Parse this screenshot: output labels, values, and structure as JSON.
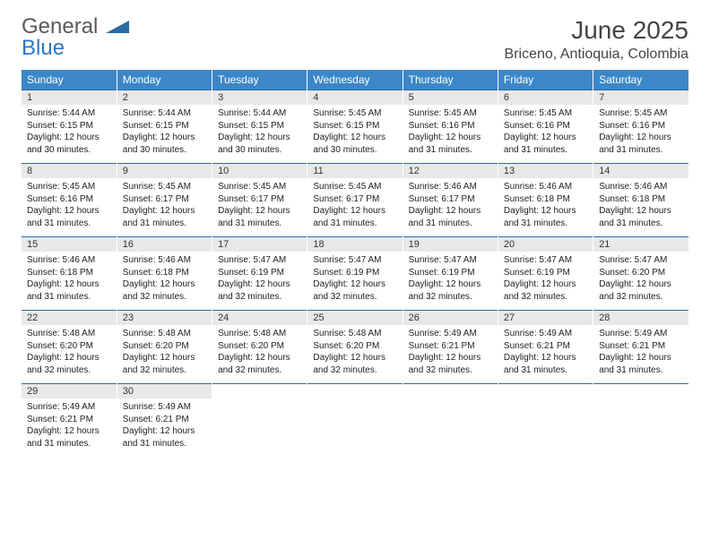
{
  "logo": {
    "top": "General",
    "bottom": "Blue"
  },
  "title": "June 2025",
  "location": "Briceno, Antioquia, Colombia",
  "colors": {
    "header_bg": "#3b87c8",
    "header_text": "#ffffff",
    "daynum_bg": "#e8e8e8",
    "border_accent": "#2a6aa3",
    "logo_gray": "#5a5a5a",
    "logo_blue": "#2a77c8",
    "title_color": "#444444",
    "body_text": "#222222",
    "page_bg": "#ffffff"
  },
  "fonts": {
    "title_size_pt": 21,
    "location_size_pt": 12,
    "header_size_pt": 9,
    "daynum_size_pt": 8,
    "body_size_pt": 7.5
  },
  "day_headers": [
    "Sunday",
    "Monday",
    "Tuesday",
    "Wednesday",
    "Thursday",
    "Friday",
    "Saturday"
  ],
  "weeks": [
    [
      {
        "n": "1",
        "sr": "Sunrise: 5:44 AM",
        "ss": "Sunset: 6:15 PM",
        "d1": "Daylight: 12 hours",
        "d2": "and 30 minutes."
      },
      {
        "n": "2",
        "sr": "Sunrise: 5:44 AM",
        "ss": "Sunset: 6:15 PM",
        "d1": "Daylight: 12 hours",
        "d2": "and 30 minutes."
      },
      {
        "n": "3",
        "sr": "Sunrise: 5:44 AM",
        "ss": "Sunset: 6:15 PM",
        "d1": "Daylight: 12 hours",
        "d2": "and 30 minutes."
      },
      {
        "n": "4",
        "sr": "Sunrise: 5:45 AM",
        "ss": "Sunset: 6:15 PM",
        "d1": "Daylight: 12 hours",
        "d2": "and 30 minutes."
      },
      {
        "n": "5",
        "sr": "Sunrise: 5:45 AM",
        "ss": "Sunset: 6:16 PM",
        "d1": "Daylight: 12 hours",
        "d2": "and 31 minutes."
      },
      {
        "n": "6",
        "sr": "Sunrise: 5:45 AM",
        "ss": "Sunset: 6:16 PM",
        "d1": "Daylight: 12 hours",
        "d2": "and 31 minutes."
      },
      {
        "n": "7",
        "sr": "Sunrise: 5:45 AM",
        "ss": "Sunset: 6:16 PM",
        "d1": "Daylight: 12 hours",
        "d2": "and 31 minutes."
      }
    ],
    [
      {
        "n": "8",
        "sr": "Sunrise: 5:45 AM",
        "ss": "Sunset: 6:16 PM",
        "d1": "Daylight: 12 hours",
        "d2": "and 31 minutes."
      },
      {
        "n": "9",
        "sr": "Sunrise: 5:45 AM",
        "ss": "Sunset: 6:17 PM",
        "d1": "Daylight: 12 hours",
        "d2": "and 31 minutes."
      },
      {
        "n": "10",
        "sr": "Sunrise: 5:45 AM",
        "ss": "Sunset: 6:17 PM",
        "d1": "Daylight: 12 hours",
        "d2": "and 31 minutes."
      },
      {
        "n": "11",
        "sr": "Sunrise: 5:45 AM",
        "ss": "Sunset: 6:17 PM",
        "d1": "Daylight: 12 hours",
        "d2": "and 31 minutes."
      },
      {
        "n": "12",
        "sr": "Sunrise: 5:46 AM",
        "ss": "Sunset: 6:17 PM",
        "d1": "Daylight: 12 hours",
        "d2": "and 31 minutes."
      },
      {
        "n": "13",
        "sr": "Sunrise: 5:46 AM",
        "ss": "Sunset: 6:18 PM",
        "d1": "Daylight: 12 hours",
        "d2": "and 31 minutes."
      },
      {
        "n": "14",
        "sr": "Sunrise: 5:46 AM",
        "ss": "Sunset: 6:18 PM",
        "d1": "Daylight: 12 hours",
        "d2": "and 31 minutes."
      }
    ],
    [
      {
        "n": "15",
        "sr": "Sunrise: 5:46 AM",
        "ss": "Sunset: 6:18 PM",
        "d1": "Daylight: 12 hours",
        "d2": "and 31 minutes."
      },
      {
        "n": "16",
        "sr": "Sunrise: 5:46 AM",
        "ss": "Sunset: 6:18 PM",
        "d1": "Daylight: 12 hours",
        "d2": "and 32 minutes."
      },
      {
        "n": "17",
        "sr": "Sunrise: 5:47 AM",
        "ss": "Sunset: 6:19 PM",
        "d1": "Daylight: 12 hours",
        "d2": "and 32 minutes."
      },
      {
        "n": "18",
        "sr": "Sunrise: 5:47 AM",
        "ss": "Sunset: 6:19 PM",
        "d1": "Daylight: 12 hours",
        "d2": "and 32 minutes."
      },
      {
        "n": "19",
        "sr": "Sunrise: 5:47 AM",
        "ss": "Sunset: 6:19 PM",
        "d1": "Daylight: 12 hours",
        "d2": "and 32 minutes."
      },
      {
        "n": "20",
        "sr": "Sunrise: 5:47 AM",
        "ss": "Sunset: 6:19 PM",
        "d1": "Daylight: 12 hours",
        "d2": "and 32 minutes."
      },
      {
        "n": "21",
        "sr": "Sunrise: 5:47 AM",
        "ss": "Sunset: 6:20 PM",
        "d1": "Daylight: 12 hours",
        "d2": "and 32 minutes."
      }
    ],
    [
      {
        "n": "22",
        "sr": "Sunrise: 5:48 AM",
        "ss": "Sunset: 6:20 PM",
        "d1": "Daylight: 12 hours",
        "d2": "and 32 minutes."
      },
      {
        "n": "23",
        "sr": "Sunrise: 5:48 AM",
        "ss": "Sunset: 6:20 PM",
        "d1": "Daylight: 12 hours",
        "d2": "and 32 minutes."
      },
      {
        "n": "24",
        "sr": "Sunrise: 5:48 AM",
        "ss": "Sunset: 6:20 PM",
        "d1": "Daylight: 12 hours",
        "d2": "and 32 minutes."
      },
      {
        "n": "25",
        "sr": "Sunrise: 5:48 AM",
        "ss": "Sunset: 6:20 PM",
        "d1": "Daylight: 12 hours",
        "d2": "and 32 minutes."
      },
      {
        "n": "26",
        "sr": "Sunrise: 5:49 AM",
        "ss": "Sunset: 6:21 PM",
        "d1": "Daylight: 12 hours",
        "d2": "and 32 minutes."
      },
      {
        "n": "27",
        "sr": "Sunrise: 5:49 AM",
        "ss": "Sunset: 6:21 PM",
        "d1": "Daylight: 12 hours",
        "d2": "and 31 minutes."
      },
      {
        "n": "28",
        "sr": "Sunrise: 5:49 AM",
        "ss": "Sunset: 6:21 PM",
        "d1": "Daylight: 12 hours",
        "d2": "and 31 minutes."
      }
    ],
    [
      {
        "n": "29",
        "sr": "Sunrise: 5:49 AM",
        "ss": "Sunset: 6:21 PM",
        "d1": "Daylight: 12 hours",
        "d2": "and 31 minutes."
      },
      {
        "n": "30",
        "sr": "Sunrise: 5:49 AM",
        "ss": "Sunset: 6:21 PM",
        "d1": "Daylight: 12 hours",
        "d2": "and 31 minutes."
      },
      null,
      null,
      null,
      null,
      null
    ]
  ]
}
